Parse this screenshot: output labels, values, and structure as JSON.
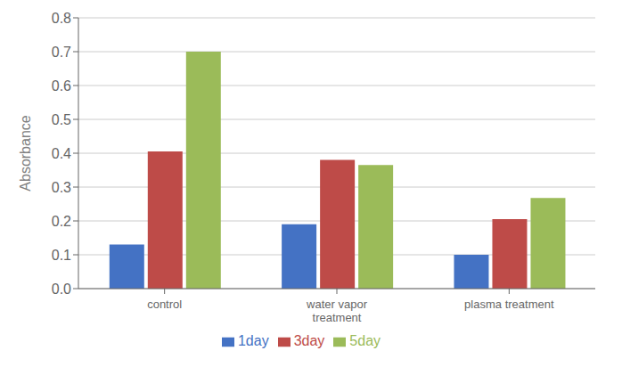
{
  "chart_data": {
    "type": "bar",
    "ylabel": "Absorbance",
    "categories": [
      "control",
      "water vapor\ntreatment",
      "plasma treatment"
    ],
    "series": [
      {
        "name": "1day",
        "color": "#4472C4",
        "values": [
          0.13,
          0.19,
          0.1
        ]
      },
      {
        "name": "3day",
        "color": "#BE4B48",
        "values": [
          0.405,
          0.38,
          0.205
        ]
      },
      {
        "name": "5day",
        "color": "#9BBB59",
        "values": [
          0.7,
          0.365,
          0.268
        ]
      }
    ],
    "ylim": [
      0,
      0.8
    ],
    "yticks": [
      {
        "value": 0,
        "label": "0.0"
      },
      0.1,
      0.2,
      0.3,
      0.4,
      0.5,
      0.6,
      0.7,
      0.8
    ],
    "grid": true,
    "legend": "bottom"
  }
}
